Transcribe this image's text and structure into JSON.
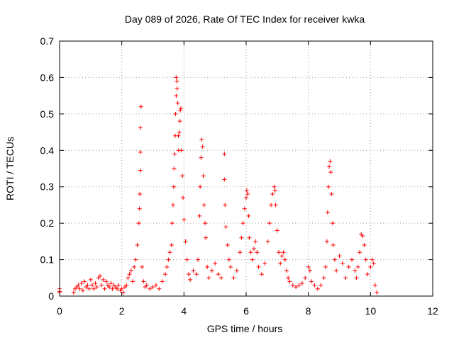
{
  "chart_data": {
    "type": "scatter",
    "title": "Day 089 of 2026, Rate Of TEC Index for receiver kwka",
    "xlabel": "GPS time / hours",
    "ylabel": "ROTI / TECUs",
    "xlim": [
      0,
      12
    ],
    "ylim": [
      0,
      0.7
    ],
    "x_ticks": [
      0,
      2,
      4,
      6,
      8,
      10,
      12
    ],
    "y_ticks": [
      0,
      0.1,
      0.2,
      0.3,
      0.4,
      0.5,
      0.6,
      0.7
    ],
    "x_tick_labels": [
      "0",
      "2",
      "4",
      "6",
      "8",
      "10",
      "12"
    ],
    "y_tick_labels": [
      "0",
      "0.1",
      "0.2",
      "0.3",
      "0.4",
      "0.5",
      "0.6",
      "0.7"
    ],
    "grid": true,
    "marker": "+",
    "color": "#ff0000",
    "series": [
      {
        "name": "ROTI",
        "points": [
          [
            0.0,
            0.02
          ],
          [
            0.0,
            0.013
          ],
          [
            0.0,
            0.01
          ],
          [
            0.45,
            0.01
          ],
          [
            0.5,
            0.02
          ],
          [
            0.55,
            0.025
          ],
          [
            0.6,
            0.03
          ],
          [
            0.65,
            0.02
          ],
          [
            0.7,
            0.035
          ],
          [
            0.75,
            0.015
          ],
          [
            0.8,
            0.04
          ],
          [
            0.85,
            0.025
          ],
          [
            0.9,
            0.03
          ],
          [
            0.95,
            0.02
          ],
          [
            1.0,
            0.045
          ],
          [
            1.05,
            0.03
          ],
          [
            1.1,
            0.02
          ],
          [
            1.15,
            0.035
          ],
          [
            1.2,
            0.025
          ],
          [
            1.25,
            0.05
          ],
          [
            1.3,
            0.055
          ],
          [
            1.35,
            0.03
          ],
          [
            1.4,
            0.045
          ],
          [
            1.45,
            0.02
          ],
          [
            1.5,
            0.04
          ],
          [
            1.55,
            0.03
          ],
          [
            1.6,
            0.025
          ],
          [
            1.65,
            0.035
          ],
          [
            1.7,
            0.02
          ],
          [
            1.75,
            0.03
          ],
          [
            1.8,
            0.025
          ],
          [
            1.85,
            0.02
          ],
          [
            1.9,
            0.03
          ],
          [
            1.95,
            0.015
          ],
          [
            2.0,
            0.02
          ],
          [
            2.05,
            0.01
          ],
          [
            2.1,
            0.025
          ],
          [
            2.15,
            0.03
          ],
          [
            2.2,
            0.05
          ],
          [
            2.25,
            0.06
          ],
          [
            2.3,
            0.07
          ],
          [
            2.35,
            0.04
          ],
          [
            2.4,
            0.08
          ],
          [
            2.45,
            0.1
          ],
          [
            2.5,
            0.14
          ],
          [
            2.55,
            0.2
          ],
          [
            2.57,
            0.24
          ],
          [
            2.58,
            0.28
          ],
          [
            2.6,
            0.345
          ],
          [
            2.6,
            0.395
          ],
          [
            2.6,
            0.462
          ],
          [
            2.62,
            0.52
          ],
          [
            2.65,
            0.08
          ],
          [
            2.7,
            0.04
          ],
          [
            2.75,
            0.025
          ],
          [
            2.8,
            0.03
          ],
          [
            2.9,
            0.02
          ],
          [
            3.0,
            0.025
          ],
          [
            3.1,
            0.03
          ],
          [
            3.2,
            0.02
          ],
          [
            3.3,
            0.04
          ],
          [
            3.4,
            0.06
          ],
          [
            3.45,
            0.08
          ],
          [
            3.5,
            0.1
          ],
          [
            3.55,
            0.12
          ],
          [
            3.6,
            0.14
          ],
          [
            3.62,
            0.2
          ],
          [
            3.65,
            0.25
          ],
          [
            3.67,
            0.3
          ],
          [
            3.68,
            0.35
          ],
          [
            3.7,
            0.39
          ],
          [
            3.72,
            0.44
          ],
          [
            3.73,
            0.5
          ],
          [
            3.75,
            0.55
          ],
          [
            3.75,
            0.6
          ],
          [
            3.77,
            0.59
          ],
          [
            3.78,
            0.57
          ],
          [
            3.8,
            0.53
          ],
          [
            3.82,
            0.44
          ],
          [
            3.83,
            0.4
          ],
          [
            3.85,
            0.45
          ],
          [
            3.87,
            0.48
          ],
          [
            3.88,
            0.51
          ],
          [
            3.9,
            0.515
          ],
          [
            3.92,
            0.4
          ],
          [
            3.95,
            0.33
          ],
          [
            3.97,
            0.27
          ],
          [
            4.0,
            0.21
          ],
          [
            4.05,
            0.15
          ],
          [
            4.1,
            0.1
          ],
          [
            4.15,
            0.06
          ],
          [
            4.2,
            0.045
          ],
          [
            4.3,
            0.07
          ],
          [
            4.4,
            0.06
          ],
          [
            4.45,
            0.1
          ],
          [
            4.5,
            0.22
          ],
          [
            4.52,
            0.3
          ],
          [
            4.55,
            0.38
          ],
          [
            4.57,
            0.43
          ],
          [
            4.6,
            0.41
          ],
          [
            4.62,
            0.33
          ],
          [
            4.65,
            0.25
          ],
          [
            4.68,
            0.2
          ],
          [
            4.7,
            0.16
          ],
          [
            4.75,
            0.08
          ],
          [
            4.8,
            0.05
          ],
          [
            4.9,
            0.07
          ],
          [
            5.0,
            0.09
          ],
          [
            5.1,
            0.06
          ],
          [
            5.2,
            0.05
          ],
          [
            5.3,
            0.39
          ],
          [
            5.3,
            0.32
          ],
          [
            5.32,
            0.25
          ],
          [
            5.35,
            0.19
          ],
          [
            5.4,
            0.14
          ],
          [
            5.45,
            0.1
          ],
          [
            5.5,
            0.08
          ],
          [
            5.6,
            0.05
          ],
          [
            5.7,
            0.07
          ],
          [
            5.8,
            0.12
          ],
          [
            5.85,
            0.16
          ],
          [
            5.9,
            0.2
          ],
          [
            5.95,
            0.24
          ],
          [
            6.0,
            0.27
          ],
          [
            6.02,
            0.29
          ],
          [
            6.05,
            0.28
          ],
          [
            6.08,
            0.22
          ],
          [
            6.1,
            0.16
          ],
          [
            6.15,
            0.12
          ],
          [
            6.2,
            0.1
          ],
          [
            6.25,
            0.13
          ],
          [
            6.3,
            0.15
          ],
          [
            6.35,
            0.12
          ],
          [
            6.4,
            0.08
          ],
          [
            6.5,
            0.06
          ],
          [
            6.6,
            0.09
          ],
          [
            6.7,
            0.15
          ],
          [
            6.75,
            0.2
          ],
          [
            6.8,
            0.25
          ],
          [
            6.85,
            0.28
          ],
          [
            6.9,
            0.3
          ],
          [
            6.93,
            0.29
          ],
          [
            6.95,
            0.25
          ],
          [
            7.0,
            0.18
          ],
          [
            7.05,
            0.12
          ],
          [
            7.1,
            0.09
          ],
          [
            7.15,
            0.11
          ],
          [
            7.2,
            0.12
          ],
          [
            7.25,
            0.1
          ],
          [
            7.3,
            0.07
          ],
          [
            7.35,
            0.05
          ],
          [
            7.4,
            0.04
          ],
          [
            7.5,
            0.03
          ],
          [
            7.6,
            0.025
          ],
          [
            7.7,
            0.03
          ],
          [
            7.8,
            0.035
          ],
          [
            7.9,
            0.05
          ],
          [
            8.0,
            0.08
          ],
          [
            8.05,
            0.07
          ],
          [
            8.1,
            0.04
          ],
          [
            8.2,
            0.03
          ],
          [
            8.3,
            0.02
          ],
          [
            8.4,
            0.03
          ],
          [
            8.5,
            0.05
          ],
          [
            8.55,
            0.08
          ],
          [
            8.6,
            0.15
          ],
          [
            8.62,
            0.23
          ],
          [
            8.65,
            0.3
          ],
          [
            8.67,
            0.355
          ],
          [
            8.7,
            0.37
          ],
          [
            8.72,
            0.34
          ],
          [
            8.75,
            0.28
          ],
          [
            8.78,
            0.2
          ],
          [
            8.8,
            0.14
          ],
          [
            8.85,
            0.1
          ],
          [
            8.9,
            0.07
          ],
          [
            9.0,
            0.11
          ],
          [
            9.1,
            0.09
          ],
          [
            9.2,
            0.05
          ],
          [
            9.3,
            0.08
          ],
          [
            9.4,
            0.1
          ],
          [
            9.5,
            0.07
          ],
          [
            9.55,
            0.05
          ],
          [
            9.6,
            0.08
          ],
          [
            9.65,
            0.12
          ],
          [
            9.7,
            0.17
          ],
          [
            9.75,
            0.165
          ],
          [
            9.8,
            0.14
          ],
          [
            9.85,
            0.1
          ],
          [
            9.9,
            0.06
          ],
          [
            10.0,
            0.08
          ],
          [
            10.05,
            0.1
          ],
          [
            10.1,
            0.09
          ],
          [
            10.15,
            0.03
          ],
          [
            10.2,
            0.01
          ]
        ]
      }
    ]
  }
}
